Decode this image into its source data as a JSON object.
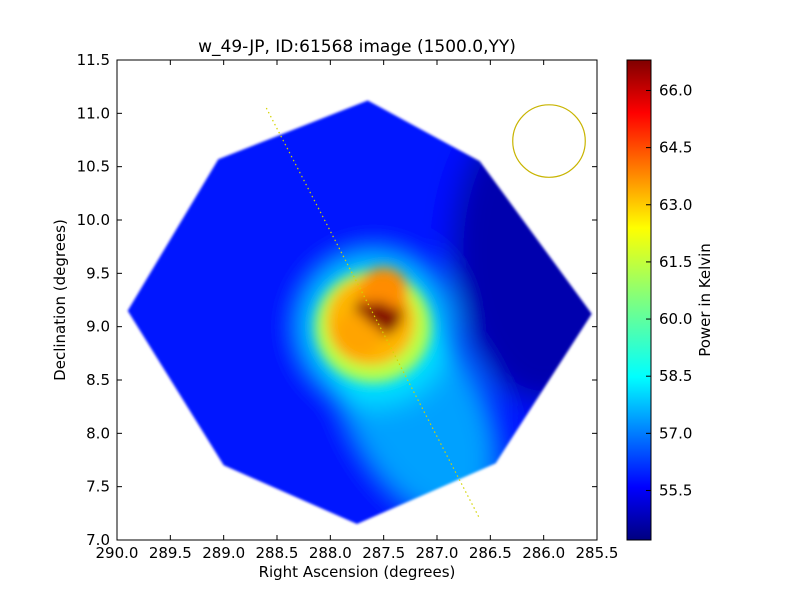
{
  "chart_data": {
    "type": "heatmap",
    "title": "w_49-JP, ID:61568 image (1500.0,YY)",
    "xlabel": "Right Ascension (degrees)",
    "ylabel": "Declination (degrees)",
    "xlim": [
      290.0,
      285.5
    ],
    "ylim": [
      7.0,
      11.5
    ],
    "x_ticks": [
      "290.0",
      "289.5",
      "289.0",
      "288.5",
      "288.0",
      "287.5",
      "287.0",
      "286.5",
      "286.0",
      "285.5"
    ],
    "y_ticks": [
      "7.0",
      "7.5",
      "8.0",
      "8.5",
      "9.0",
      "9.5",
      "10.0",
      "10.5",
      "11.0",
      "11.5"
    ],
    "colorbar": {
      "label": "Power in Kelvin",
      "range": [
        54.2,
        66.8
      ],
      "ticks": [
        "55.5",
        "57.0",
        "58.5",
        "60.0",
        "61.5",
        "63.0",
        "64.5",
        "66.0"
      ],
      "colormap": "jet"
    },
    "field_boundary": {
      "shape": "octagon",
      "vertices": [
        [
          287.65,
          11.12
        ],
        [
          286.6,
          10.55
        ],
        [
          285.55,
          9.12
        ],
        [
          286.45,
          7.72
        ],
        [
          287.75,
          7.15
        ],
        [
          289.0,
          7.7
        ],
        [
          289.9,
          9.15
        ],
        [
          289.05,
          10.57
        ]
      ]
    },
    "sources": [
      {
        "ra": 287.55,
        "dec": 9.12,
        "value": 66.8
      },
      {
        "ra": 287.75,
        "dec": 8.92,
        "value": 63.2
      },
      {
        "ra": 287.5,
        "dec": 9.35,
        "value": 63.5
      }
    ],
    "background_level": 56.0,
    "beam_circle": {
      "ra": 285.95,
      "dec": 10.74,
      "radius_deg": 0.34,
      "color": "#c8b400"
    },
    "track_line": {
      "start": [
        288.6,
        11.05
      ],
      "end": [
        286.6,
        7.2
      ],
      "color": "#d4d400",
      "style": "dotted"
    },
    "grid": false
  }
}
